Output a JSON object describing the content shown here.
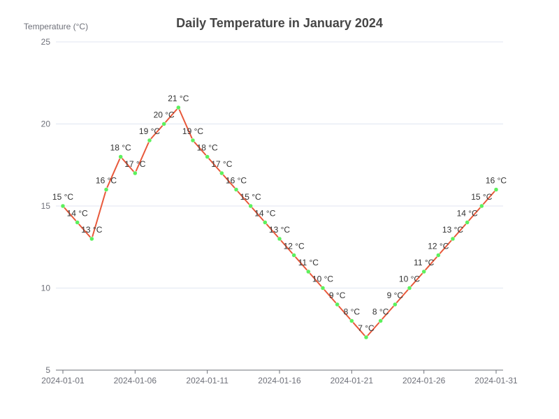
{
  "chart_data": {
    "type": "line",
    "title": "Daily Temperature in January 2024",
    "ylabel": "Temperature (°C)",
    "xlabel": "",
    "ylim": [
      5,
      25
    ],
    "yticks": [
      5,
      10,
      15,
      20,
      25
    ],
    "unit": "°C",
    "x": [
      "2024-01-01",
      "2024-01-02",
      "2024-01-03",
      "2024-01-04",
      "2024-01-05",
      "2024-01-06",
      "2024-01-07",
      "2024-01-08",
      "2024-01-09",
      "2024-01-10",
      "2024-01-11",
      "2024-01-12",
      "2024-01-13",
      "2024-01-14",
      "2024-01-15",
      "2024-01-16",
      "2024-01-17",
      "2024-01-18",
      "2024-01-19",
      "2024-01-20",
      "2024-01-21",
      "2024-01-22",
      "2024-01-23",
      "2024-01-24",
      "2024-01-25",
      "2024-01-26",
      "2024-01-27",
      "2024-01-28",
      "2024-01-29",
      "2024-01-30",
      "2024-01-31"
    ],
    "xtick_labels": [
      "2024-01-01",
      "2024-01-06",
      "2024-01-11",
      "2024-01-16",
      "2024-01-21",
      "2024-01-26",
      "2024-01-31"
    ],
    "series": [
      {
        "values": [
          15,
          14,
          13,
          16,
          18,
          17,
          19,
          20,
          21,
          19,
          18,
          17,
          16,
          15,
          14,
          13,
          12,
          11,
          10,
          9,
          8,
          7,
          8,
          9,
          10,
          11,
          12,
          13,
          14,
          15,
          16
        ],
        "line_color": "#e8583a",
        "marker_color": "#5cf05c"
      }
    ],
    "grid": true
  }
}
